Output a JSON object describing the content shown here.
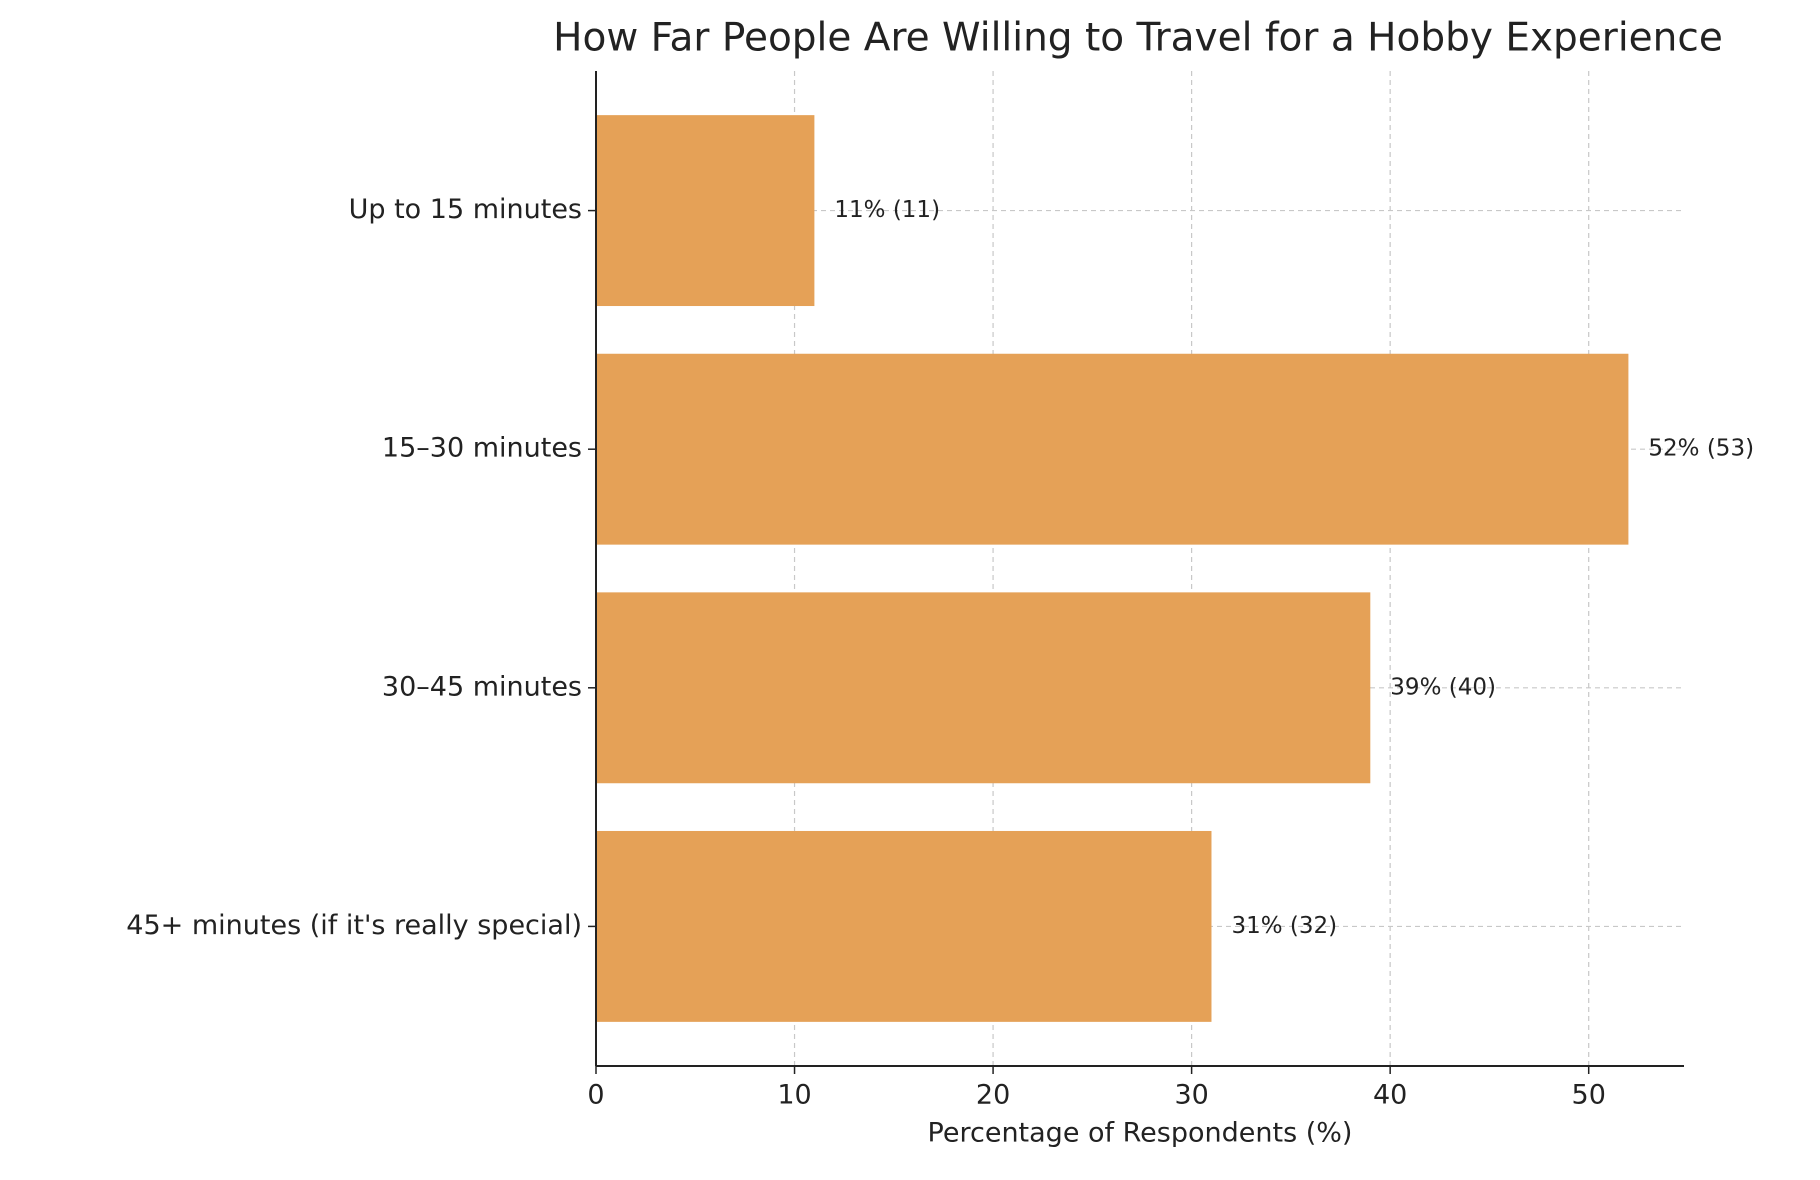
{
  "chart_data": {
    "type": "barh",
    "title": "How Far People Are Willing to Travel for a Hobby Experience",
    "xlabel": "Percentage of Respondents (%)",
    "categories": [
      "Up to 15 minutes",
      "15–30 minutes",
      "30–45 minutes",
      "45+ minutes (if it's really special)"
    ],
    "values": [
      11,
      52,
      39,
      31
    ],
    "value_labels": [
      "11% (11)",
      "52% (53)",
      "39% (40)",
      "31% (32)"
    ],
    "color": "#e5a157",
    "xlim": [
      0,
      54.8
    ],
    "xticks": [
      0,
      10,
      20,
      30,
      40,
      50
    ],
    "grid": true
  }
}
